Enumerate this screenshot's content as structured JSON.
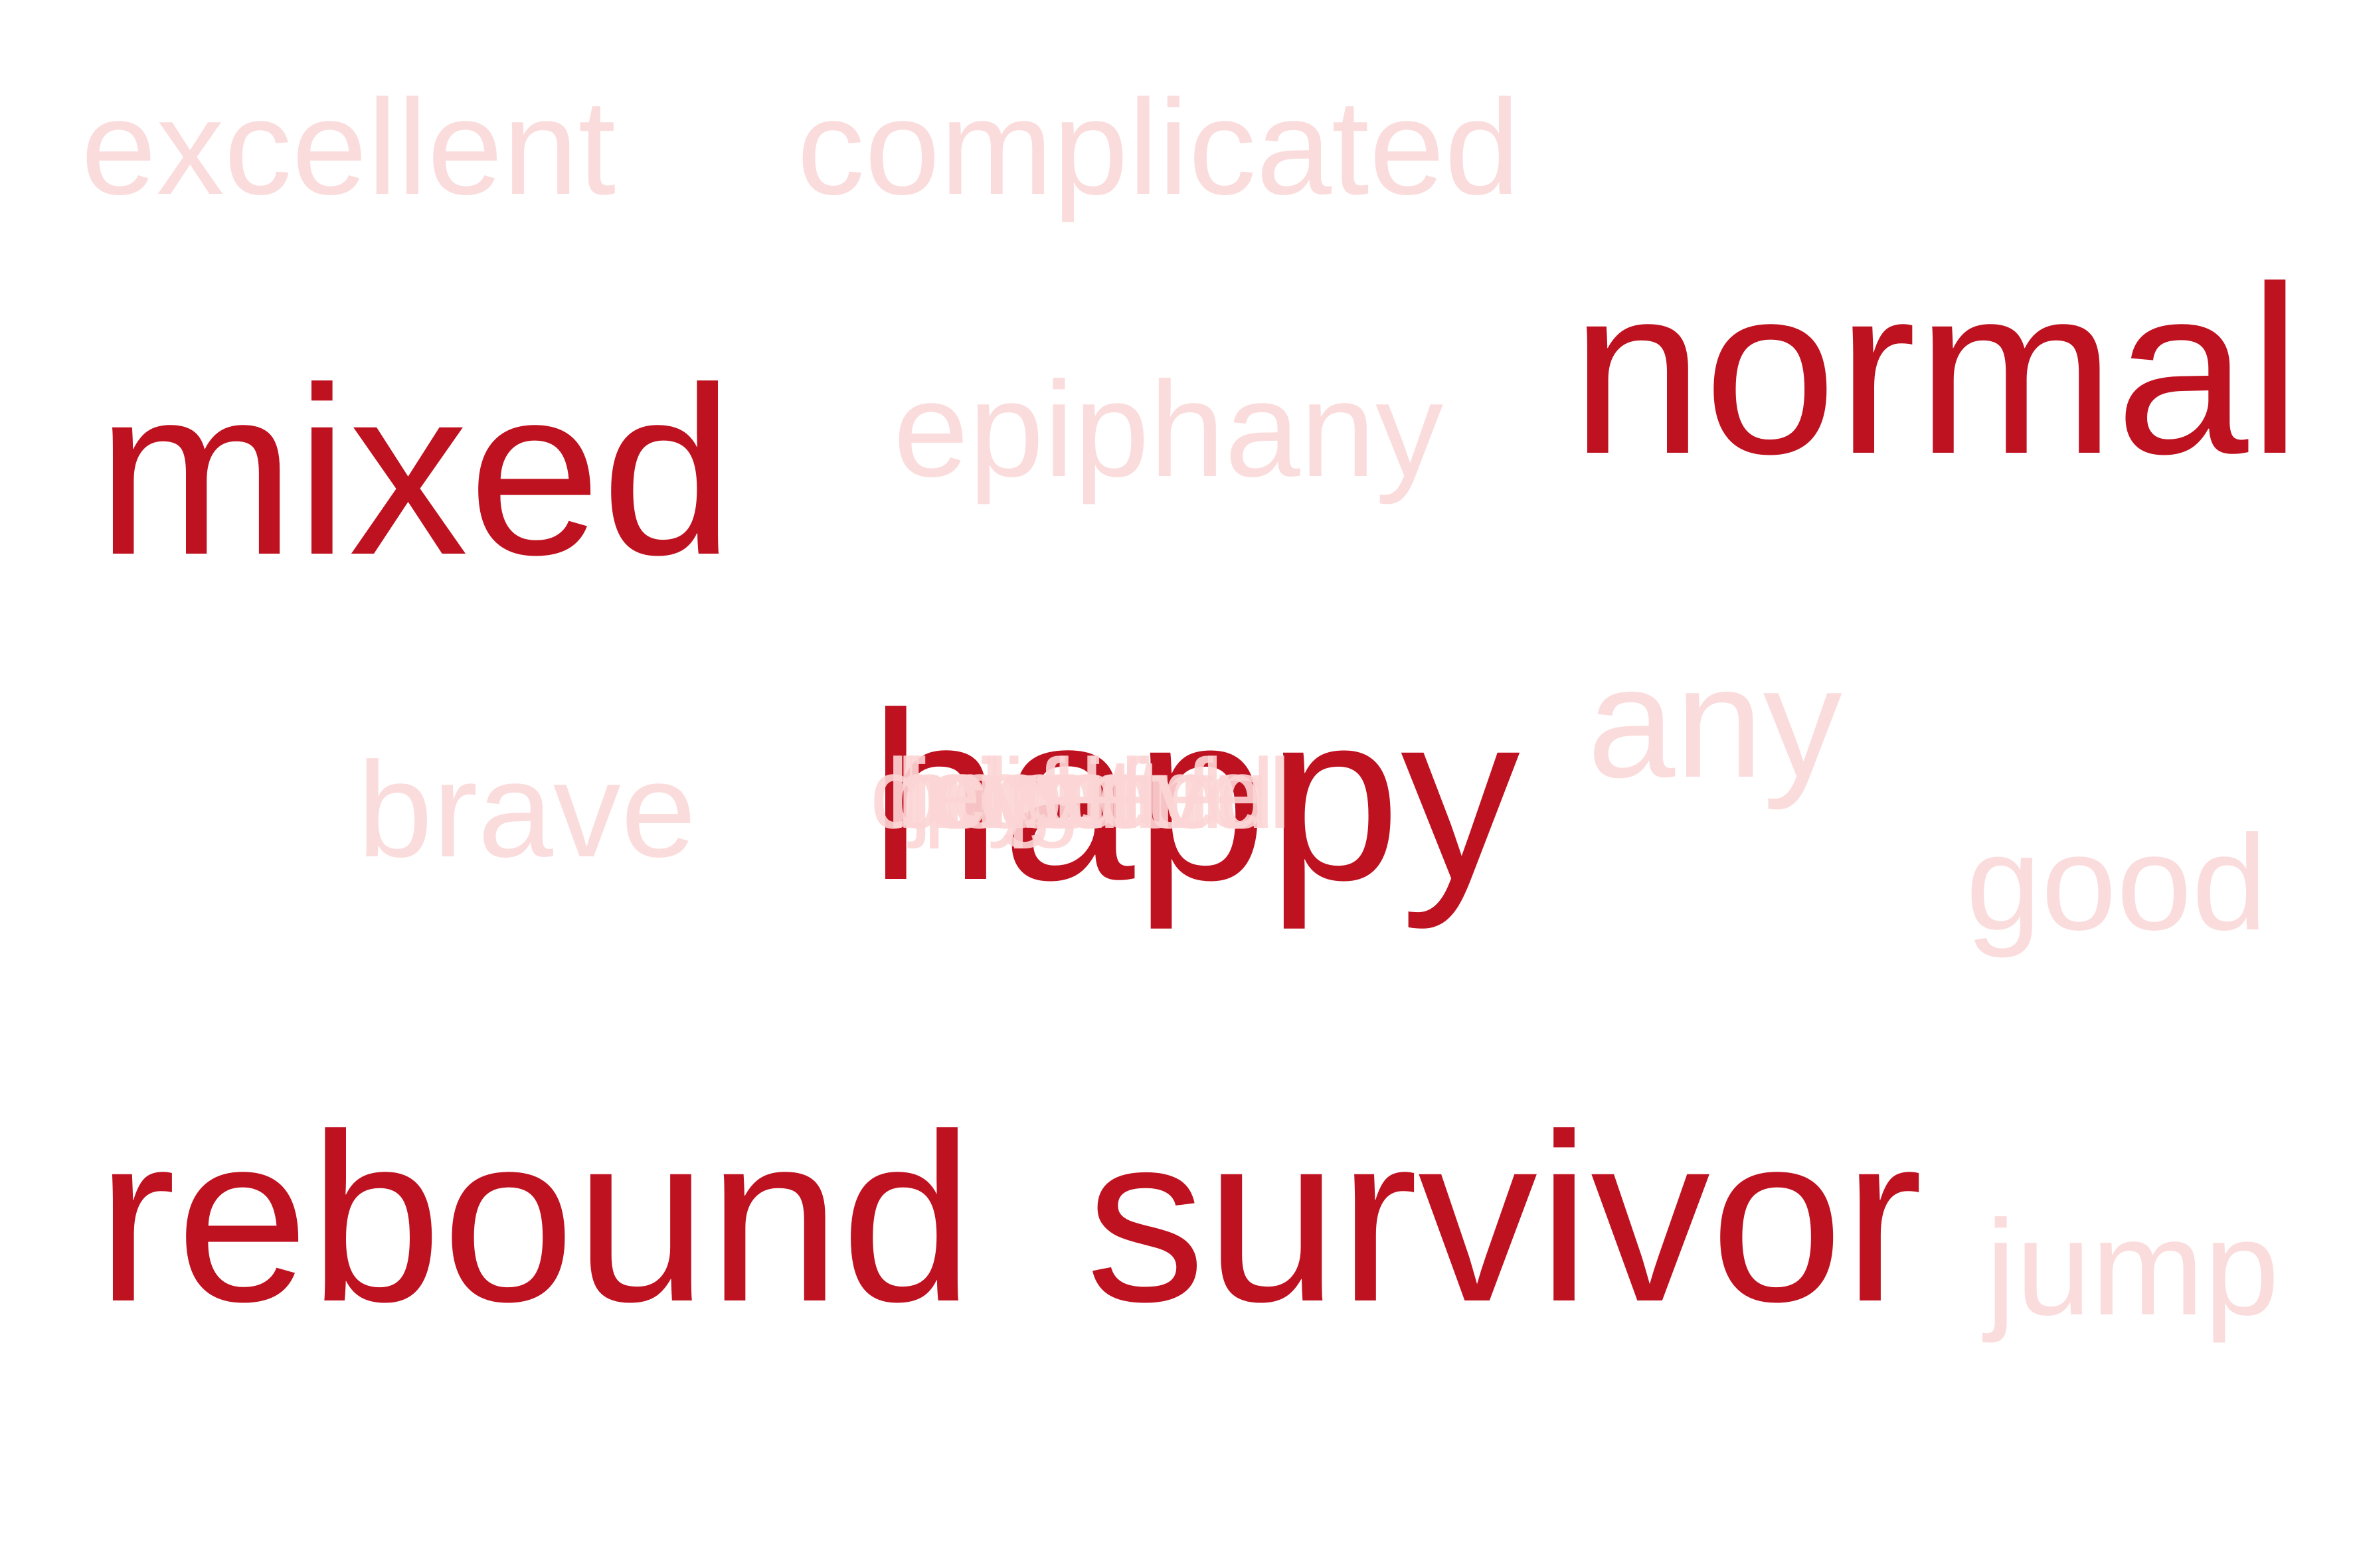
{
  "palette": {
    "emphasis": "#bf1220",
    "faint": "#fbdcdc"
  },
  "words": {
    "excellent": "excellent",
    "complicated": "complicated",
    "mixed": "mixed",
    "epiphany": "epiphany",
    "normal": "normal",
    "any": "any",
    "brave": "brave",
    "happy": "happy",
    "good": "good",
    "rebound": "rebound",
    "survivor": "survivor",
    "jump": "jump"
  },
  "overlapping_words": [
    "delighted",
    "hopeful",
    "positive",
    "bright",
    "joyful",
    "cheerful"
  ]
}
